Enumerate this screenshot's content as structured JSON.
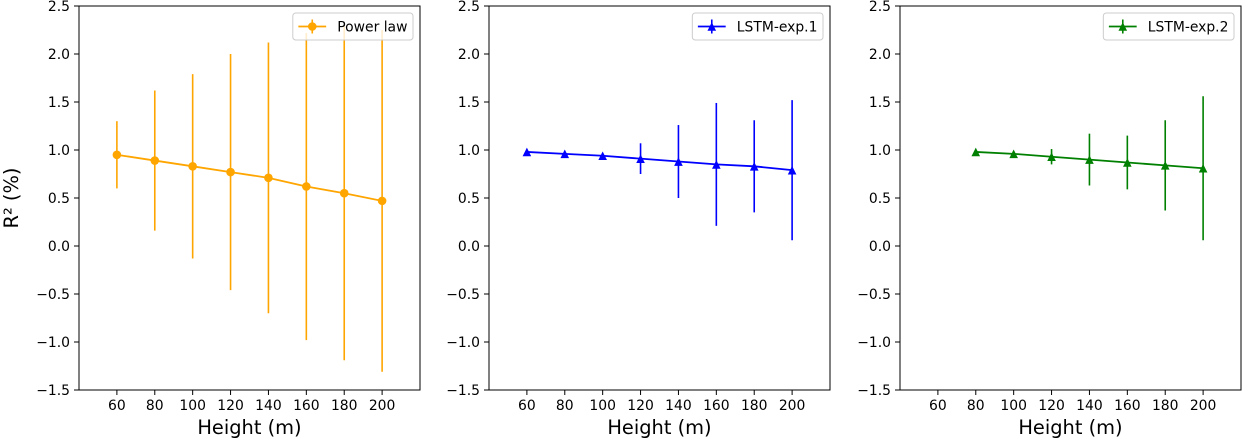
{
  "chart_data": [
    {
      "type": "line",
      "x": [
        60,
        80,
        100,
        120,
        140,
        160,
        180,
        200
      ],
      "series": [
        {
          "name": "Power law",
          "values": [
            0.95,
            0.89,
            0.83,
            0.77,
            0.71,
            0.62,
            0.55,
            0.47
          ],
          "yerr": [
            0.35,
            0.73,
            0.96,
            1.23,
            1.41,
            1.6,
            1.74,
            1.78
          ],
          "color": "#FFA500",
          "marker": "circle"
        }
      ],
      "xlabel": "Height (m)",
      "ylabel": "R² (%)",
      "xlim": [
        40,
        220
      ],
      "ylim": [
        -1.5,
        2.5
      ],
      "xticks": [
        60,
        80,
        100,
        120,
        140,
        160,
        180,
        200
      ],
      "xtick_labels": [
        "60",
        "80",
        "100",
        "120",
        "140",
        "160",
        "180",
        "200"
      ],
      "yticks": [
        -1.5,
        -1.0,
        -0.5,
        0.0,
        0.5,
        1.0,
        1.5,
        2.0,
        2.5
      ],
      "ytick_labels": [
        "−1.5",
        "−1.0",
        "−0.5",
        "0.0",
        "0.5",
        "1.0",
        "1.5",
        "2.0",
        "2.5"
      ],
      "legend": "top-right",
      "grid": false
    },
    {
      "type": "line",
      "x": [
        60,
        80,
        100,
        120,
        140,
        160,
        180,
        200
      ],
      "series": [
        {
          "name": "LSTM-exp.1",
          "values": [
            0.98,
            0.96,
            0.94,
            0.91,
            0.88,
            0.85,
            0.83,
            0.79
          ],
          "yerr": [
            0.02,
            0.02,
            0.03,
            0.16,
            0.38,
            0.64,
            0.48,
            0.73
          ],
          "color": "#0000FF",
          "marker": "triangle"
        }
      ],
      "xlabel": "Height (m)",
      "xlim": [
        40,
        220
      ],
      "ylim": [
        -1.5,
        2.5
      ],
      "xticks": [
        60,
        80,
        100,
        120,
        140,
        160,
        180,
        200
      ],
      "xtick_labels": [
        "60",
        "80",
        "100",
        "120",
        "140",
        "160",
        "180",
        "200"
      ],
      "yticks": [
        -1.5,
        -1.0,
        -0.5,
        0.0,
        0.5,
        1.0,
        1.5,
        2.0,
        2.5
      ],
      "ytick_labels": [
        "−1.5",
        "−1.0",
        "−0.5",
        "0.0",
        "0.5",
        "1.0",
        "1.5",
        "2.0",
        "2.5"
      ],
      "legend": "top-right",
      "grid": false
    },
    {
      "type": "line",
      "x": [
        80,
        100,
        120,
        140,
        160,
        180,
        200
      ],
      "series": [
        {
          "name": "LSTM-exp.2",
          "values": [
            0.98,
            0.96,
            0.93,
            0.9,
            0.87,
            0.84,
            0.81
          ],
          "yerr": [
            0.02,
            0.03,
            0.08,
            0.27,
            0.28,
            0.47,
            0.75
          ],
          "color": "#008000",
          "marker": "triangle"
        }
      ],
      "xlabel": "Height (m)",
      "xlim": [
        40,
        220
      ],
      "ylim": [
        -1.5,
        2.5
      ],
      "xticks": [
        60,
        80,
        100,
        120,
        140,
        160,
        180,
        200
      ],
      "xtick_labels": [
        "60",
        "80",
        "100",
        "120",
        "140",
        "160",
        "180",
        "200"
      ],
      "yticks": [
        -1.5,
        -1.0,
        -0.5,
        0.0,
        0.5,
        1.0,
        1.5,
        2.0,
        2.5
      ],
      "ytick_labels": [
        "−1.5",
        "−1.0",
        "−0.5",
        "0.0",
        "0.5",
        "1.0",
        "1.5",
        "2.0",
        "2.5"
      ],
      "legend": "top-right",
      "grid": false
    }
  ]
}
